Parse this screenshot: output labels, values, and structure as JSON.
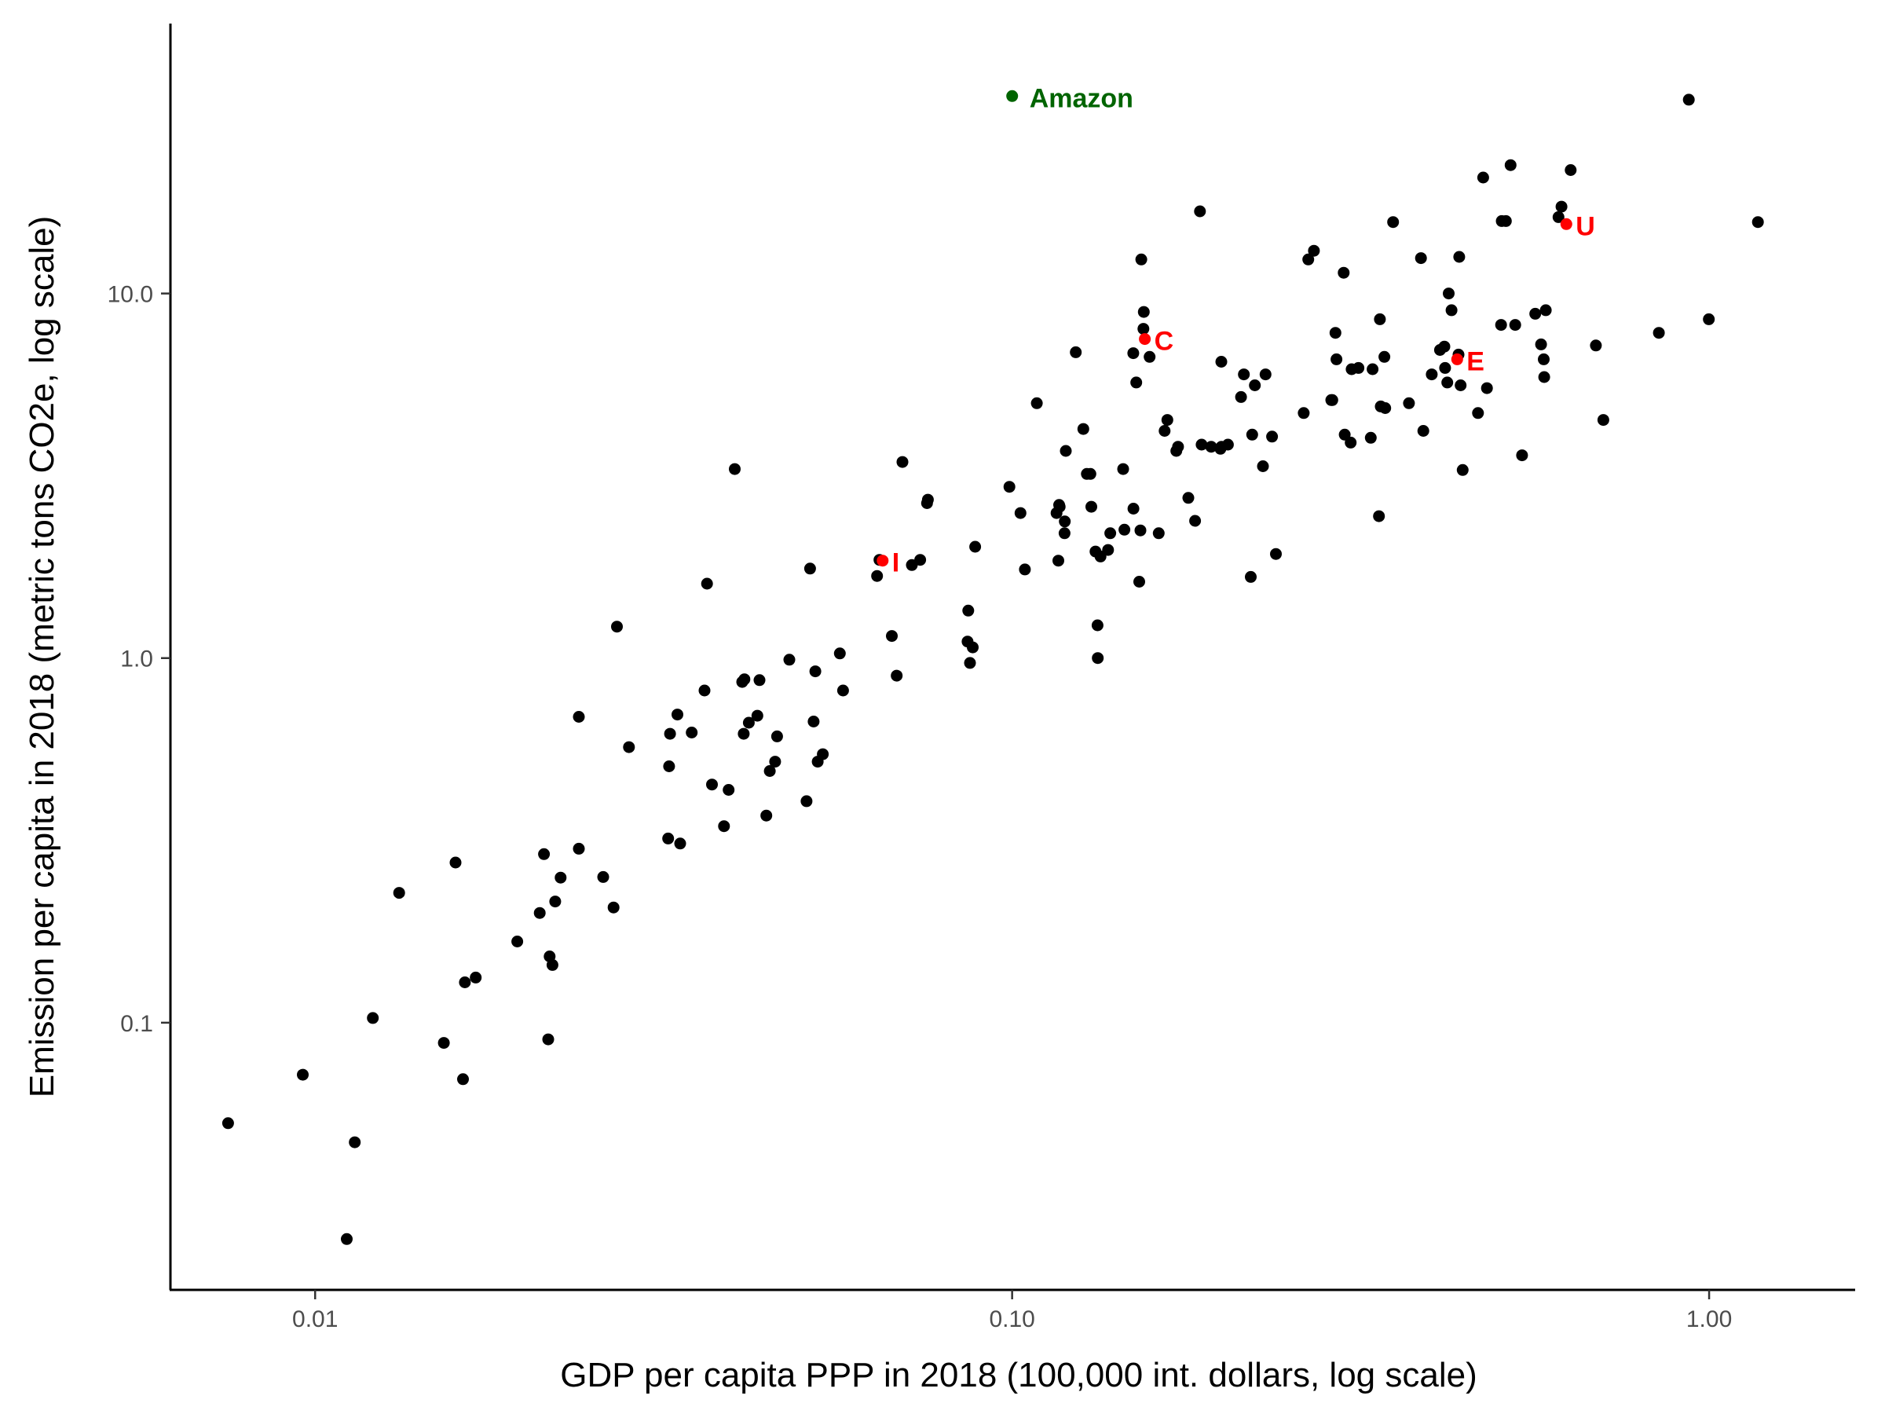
{
  "chart_data": {
    "type": "scatter",
    "title": "",
    "xlabel": "GDP per capita PPP in 2018 (100,000 int. dollars, log scale)",
    "ylabel": "Emission per capita in 2018 (metric tons CO2e, log scale)",
    "x_scale": "log",
    "y_scale": "log",
    "xlim": [
      0.0062,
      1.62
    ],
    "ylim": [
      0.0185,
      55
    ],
    "grid": false,
    "legend": "none",
    "x_ticks": [
      {
        "value": 0.01,
        "label": "0.01"
      },
      {
        "value": 0.1,
        "label": "0.10"
      },
      {
        "value": 1.0,
        "label": "1.00"
      }
    ],
    "y_ticks": [
      {
        "value": 0.1,
        "label": "0.1"
      },
      {
        "value": 1.0,
        "label": "1.0"
      },
      {
        "value": 10.0,
        "label": "10.0"
      }
    ],
    "point_color": "#000000",
    "highlight_color": "#ff0000",
    "amazon_color": "#006400",
    "points": [
      [
        0.0075,
        0.053
      ],
      [
        0.0096,
        0.072
      ],
      [
        0.0111,
        0.0255
      ],
      [
        0.0114,
        0.047
      ],
      [
        0.0121,
        0.103
      ],
      [
        0.0132,
        0.227
      ],
      [
        0.0153,
        0.088
      ],
      [
        0.0159,
        0.275
      ],
      [
        0.0163,
        0.07
      ],
      [
        0.0164,
        0.129
      ],
      [
        0.017,
        0.133
      ],
      [
        0.0195,
        0.167
      ],
      [
        0.021,
        0.2
      ],
      [
        0.0213,
        0.29
      ],
      [
        0.0216,
        0.09
      ],
      [
        0.0217,
        0.152
      ],
      [
        0.0219,
        0.144
      ],
      [
        0.0221,
        0.215
      ],
      [
        0.0225,
        0.25
      ],
      [
        0.0239,
        0.3
      ],
      [
        0.0239,
        0.69
      ],
      [
        0.0259,
        0.251
      ],
      [
        0.0268,
        0.207
      ],
      [
        0.0271,
        1.22
      ],
      [
        0.0282,
        0.57
      ],
      [
        0.0321,
        0.32
      ],
      [
        0.0322,
        0.505
      ],
      [
        0.0323,
        0.62
      ],
      [
        0.0331,
        0.7
      ],
      [
        0.0334,
        0.31
      ],
      [
        0.0347,
        0.625
      ],
      [
        0.0362,
        0.815
      ],
      [
        0.0365,
        1.6
      ],
      [
        0.0371,
        0.45
      ],
      [
        0.0386,
        0.346
      ],
      [
        0.0392,
        0.435
      ],
      [
        0.04,
        3.3
      ],
      [
        0.041,
        0.86
      ],
      [
        0.0412,
        0.62
      ],
      [
        0.0413,
        0.875
      ],
      [
        0.0419,
        0.665
      ],
      [
        0.0431,
        0.695
      ],
      [
        0.0434,
        0.87
      ],
      [
        0.0444,
        0.37
      ],
      [
        0.0449,
        0.49
      ],
      [
        0.0457,
        0.52
      ],
      [
        0.046,
        0.61
      ],
      [
        0.0479,
        0.99
      ],
      [
        0.0507,
        0.405
      ],
      [
        0.0513,
        1.76
      ],
      [
        0.0519,
        0.67
      ],
      [
        0.0522,
        0.92
      ],
      [
        0.0526,
        0.52
      ],
      [
        0.0535,
        0.545
      ],
      [
        0.0566,
        1.03
      ],
      [
        0.0572,
        0.815
      ],
      [
        0.064,
        1.68
      ],
      [
        0.0645,
        1.86
      ],
      [
        0.0672,
        1.15
      ],
      [
        0.0683,
        0.895
      ],
      [
        0.0696,
        3.45
      ],
      [
        0.0718,
        1.8
      ],
      [
        0.0738,
        1.86
      ],
      [
        0.0755,
        2.66
      ],
      [
        0.0757,
        2.72
      ],
      [
        0.0863,
        1.11
      ],
      [
        0.0865,
        1.35
      ],
      [
        0.087,
        0.97
      ],
      [
        0.0878,
        1.07
      ],
      [
        0.0885,
        2.02
      ],
      [
        0.0991,
        2.95
      ],
      [
        0.1028,
        2.5
      ],
      [
        0.1043,
        1.75
      ],
      [
        0.1085,
        5.0
      ],
      [
        0.1158,
        2.5
      ],
      [
        0.1165,
        1.85
      ],
      [
        0.1168,
        2.63
      ],
      [
        0.117,
        2.6
      ],
      [
        0.1189,
        2.2
      ],
      [
        0.119,
        2.37
      ],
      [
        0.1194,
        3.7
      ],
      [
        0.1234,
        6.9
      ],
      [
        0.1265,
        4.25
      ],
      [
        0.128,
        3.2
      ],
      [
        0.1295,
        3.2
      ],
      [
        0.1299,
        2.6
      ],
      [
        0.1317,
        1.96
      ],
      [
        0.1326,
        1.23
      ],
      [
        0.1327,
        1.0
      ],
      [
        0.1339,
        1.9
      ],
      [
        0.1373,
        1.98
      ],
      [
        0.1383,
        2.2
      ],
      [
        0.1443,
        3.3
      ],
      [
        0.1449,
        2.25
      ],
      [
        0.1492,
        6.86
      ],
      [
        0.1493,
        2.57
      ],
      [
        0.1507,
        5.7
      ],
      [
        0.1522,
        1.62
      ],
      [
        0.1528,
        2.24
      ],
      [
        0.1532,
        12.4
      ],
      [
        0.1543,
        8.0
      ],
      [
        0.1545,
        8.9
      ],
      [
        0.1575,
        6.7
      ],
      [
        0.1623,
        2.2
      ],
      [
        0.1655,
        4.2
      ],
      [
        0.167,
        4.5
      ],
      [
        0.172,
        3.7
      ],
      [
        0.173,
        3.8
      ],
      [
        0.179,
        2.75
      ],
      [
        0.183,
        2.38
      ],
      [
        0.186,
        16.8
      ],
      [
        0.187,
        3.85
      ],
      [
        0.193,
        3.8
      ],
      [
        0.199,
        3.75
      ],
      [
        0.1996,
        6.5
      ],
      [
        0.1997,
        3.8
      ],
      [
        0.204,
        3.85
      ],
      [
        0.213,
        5.2
      ],
      [
        0.215,
        6.0
      ],
      [
        0.22,
        1.67
      ],
      [
        0.221,
        4.1
      ],
      [
        0.223,
        5.6
      ],
      [
        0.229,
        3.36
      ],
      [
        0.231,
        6.0
      ],
      [
        0.236,
        4.05
      ],
      [
        0.239,
        1.93
      ],
      [
        0.262,
        4.7
      ],
      [
        0.266,
        12.4
      ],
      [
        0.271,
        13.1
      ],
      [
        0.287,
        5.1
      ],
      [
        0.288,
        5.1
      ],
      [
        0.291,
        7.8
      ],
      [
        0.292,
        6.6
      ],
      [
        0.299,
        11.4
      ],
      [
        0.3,
        4.1
      ],
      [
        0.306,
        3.9
      ],
      [
        0.307,
        6.2
      ],
      [
        0.314,
        6.25
      ],
      [
        0.327,
        4.02
      ],
      [
        0.329,
        6.2
      ],
      [
        0.336,
        2.45
      ],
      [
        0.337,
        8.5
      ],
      [
        0.338,
        4.9
      ],
      [
        0.342,
        6.7
      ],
      [
        0.343,
        4.85
      ],
      [
        0.352,
        15.7
      ],
      [
        0.371,
        5.0
      ],
      [
        0.386,
        12.5
      ],
      [
        0.389,
        4.2
      ],
      [
        0.4,
        6.0
      ],
      [
        0.411,
        7.0
      ],
      [
        0.417,
        7.15
      ],
      [
        0.418,
        6.25
      ],
      [
        0.421,
        5.7
      ],
      [
        0.423,
        10.0
      ],
      [
        0.427,
        9.0
      ],
      [
        0.437,
        6.8
      ],
      [
        0.438,
        12.6
      ],
      [
        0.44,
        5.6
      ],
      [
        0.443,
        3.28
      ],
      [
        0.466,
        4.7
      ],
      [
        0.474,
        20.8
      ],
      [
        0.48,
        5.5
      ],
      [
        0.503,
        8.2
      ],
      [
        0.504,
        15.8
      ],
      [
        0.511,
        15.8
      ],
      [
        0.519,
        22.5
      ],
      [
        0.527,
        8.2
      ],
      [
        0.539,
        3.6
      ],
      [
        0.563,
        8.8
      ],
      [
        0.574,
        7.25
      ],
      [
        0.579,
        6.6
      ],
      [
        0.58,
        5.9
      ],
      [
        0.583,
        9.0
      ],
      [
        0.608,
        16.2
      ],
      [
        0.614,
        17.3
      ],
      [
        0.633,
        21.8
      ],
      [
        0.688,
        7.2
      ],
      [
        0.705,
        4.5
      ],
      [
        0.847,
        7.8
      ],
      [
        0.935,
        34.0
      ],
      [
        0.999,
        8.5
      ],
      [
        1.175,
        15.7
      ]
    ],
    "highlights": [
      {
        "label": "I",
        "x": 0.0652,
        "y": 1.85
      },
      {
        "label": "C",
        "x": 0.155,
        "y": 7.5
      },
      {
        "label": "E",
        "x": 0.435,
        "y": 6.6
      },
      {
        "label": "U",
        "x": 0.624,
        "y": 15.5
      }
    ],
    "amazon": {
      "label": "Amazon",
      "x": 0.1,
      "y": 34.8
    }
  }
}
